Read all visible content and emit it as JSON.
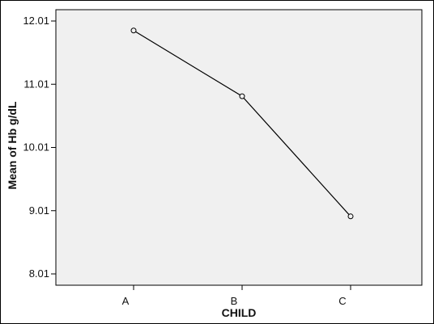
{
  "chart_data": {
    "type": "line",
    "title": "",
    "xlabel": "CHILD",
    "ylabel": "Mean of Hb g/dL",
    "categories": [
      "A",
      "B",
      "C"
    ],
    "series": [
      {
        "values": [
          11.86,
          10.82,
          8.92
        ]
      }
    ],
    "ylim": [
      8.01,
      12.01
    ],
    "yticks": [
      "8.01",
      "9.01",
      "10.01",
      "11.01",
      "12.01"
    ],
    "grid": false,
    "markers": "open-circle",
    "colors": {
      "plot_background": "#f0f0f0",
      "line": "#000000"
    }
  }
}
